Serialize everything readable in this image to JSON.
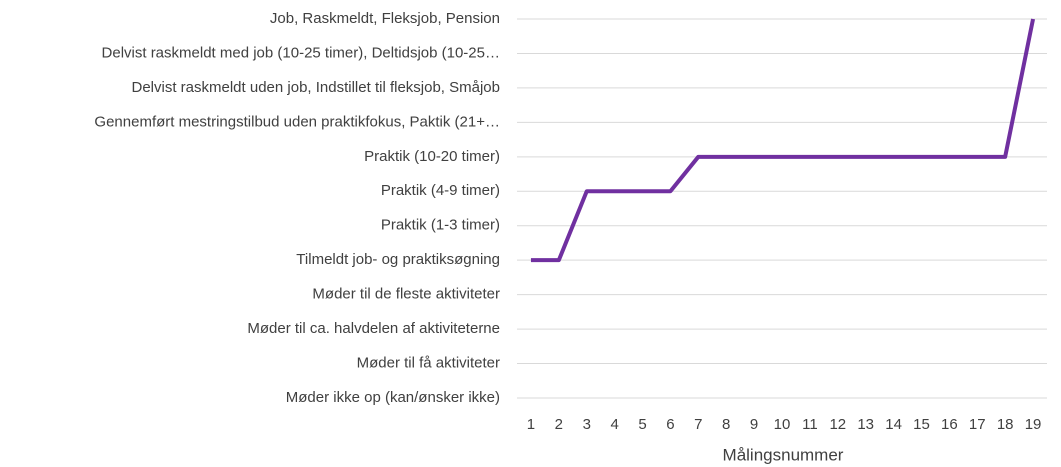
{
  "chart_data": {
    "type": "line",
    "x_label": "Målingsnummer",
    "categories": [
      "1",
      "2",
      "3",
      "4",
      "5",
      "6",
      "7",
      "8",
      "9",
      "10",
      "11",
      "12",
      "13",
      "14",
      "15",
      "16",
      "17",
      "18",
      "19"
    ],
    "values": [
      4,
      4,
      6,
      6,
      6,
      6,
      7,
      7,
      7,
      7,
      7,
      7,
      7,
      7,
      7,
      7,
      7,
      7,
      11
    ],
    "color": "#7030a0",
    "ylim": [
      0,
      11
    ],
    "yticks": [
      {
        "value": 0,
        "label": "Møder ikke op (kan/ønsker ikke)"
      },
      {
        "value": 1,
        "label": "Møder til få aktiviteter"
      },
      {
        "value": 2,
        "label": "Møder til ca. halvdelen af aktiviteterne"
      },
      {
        "value": 3,
        "label": "Møder til de fleste aktiviteter"
      },
      {
        "value": 4,
        "label": "Tilmeldt job- og praktiksøgning"
      },
      {
        "value": 5,
        "label": "Praktik (1-3 timer)"
      },
      {
        "value": 6,
        "label": "Praktik (4-9 timer)"
      },
      {
        "value": 7,
        "label": "Praktik (10-20 timer)"
      },
      {
        "value": 8,
        "label": "Gennemført mestringstilbud uden praktikfokus, Paktik (21+…"
      },
      {
        "value": 9,
        "label": "Delvist raskmeldt uden job, Indstillet til fleksjob, Småjob"
      },
      {
        "value": 10,
        "label": "Delvist raskmeldt med job (10-25 timer), Deltidsjob (10-25…"
      },
      {
        "value": 11,
        "label": "Job, Raskmeldt, Fleksjob, Pension"
      }
    ],
    "grid": true
  }
}
